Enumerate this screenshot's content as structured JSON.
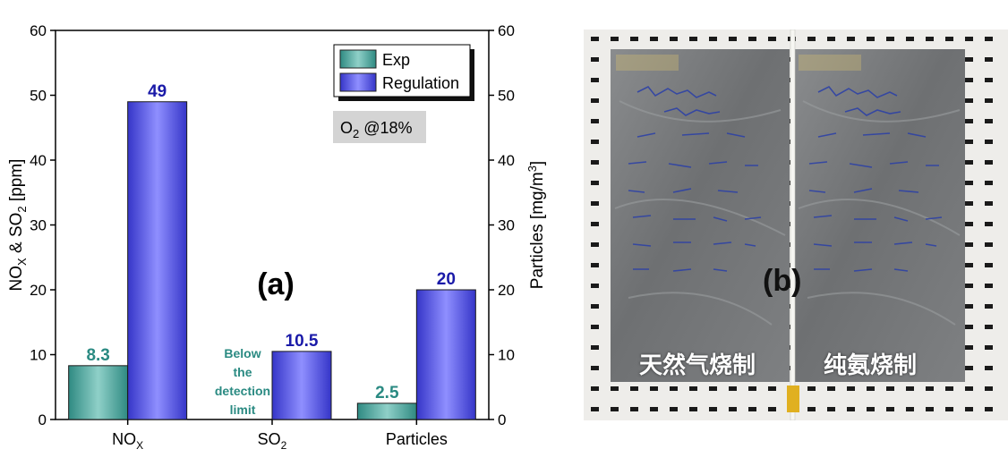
{
  "chart_data": {
    "type": "bar",
    "panel_label": "(a)",
    "categories": [
      "NOX",
      "SO2",
      "Particles"
    ],
    "series": [
      {
        "name": "Exp",
        "color": "#3f9f96",
        "values": [
          8.3,
          null,
          2.5
        ],
        "labels": [
          "8.3",
          "",
          "2.5"
        ]
      },
      {
        "name": "Regulation",
        "color": "#4b4bf0",
        "values": [
          49,
          10.5,
          20
        ],
        "labels": [
          "49",
          "10.5",
          "20"
        ]
      }
    ],
    "annotations": {
      "below_limit": [
        "Below",
        "the",
        "detection",
        "limit"
      ],
      "condition": "O2 @18%"
    },
    "ylabel_left": "NOX & SO2 [ppm]",
    "ylabel_right": "Particles [mg/m3]",
    "ylim": [
      0,
      60
    ],
    "yticks": [
      0,
      10,
      20,
      30,
      40,
      50,
      60
    ],
    "legend_position": "top-right",
    "label_colors": {
      "exp": "#2a8a82",
      "regulation": "#1a1aa8"
    }
  },
  "photo": {
    "panel_label": "(b)",
    "left_slab_caption": "天然气烧制",
    "right_slab_caption": "纯氨烧制"
  }
}
